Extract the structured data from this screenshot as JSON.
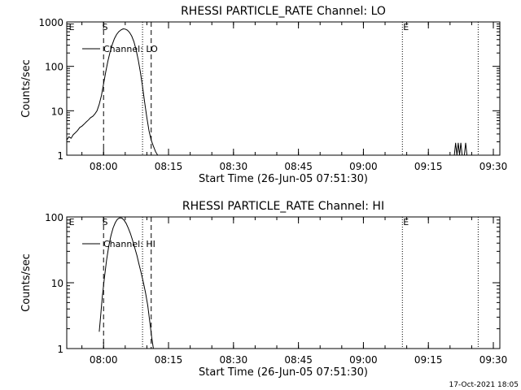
{
  "chart_data": [
    {
      "type": "line",
      "title": "RHESSI PARTICLE_RATE Channel: LO",
      "xlabel": "Start Time (26-Jun-05 07:51:30)",
      "ylabel": "Counts/sec",
      "yscale": "log",
      "ylim": [
        1,
        1000
      ],
      "xlim_minutes_after_start": [
        0,
        100
      ],
      "x_ticks": [
        {
          "minute": 8.5,
          "label": "08:00"
        },
        {
          "minute": 23.5,
          "label": "08:15"
        },
        {
          "minute": 38.5,
          "label": "08:30"
        },
        {
          "minute": 53.5,
          "label": "08:45"
        },
        {
          "minute": 68.5,
          "label": "09:00"
        },
        {
          "minute": 83.5,
          "label": "09:15"
        },
        {
          "minute": 98.5,
          "label": "09:30"
        }
      ],
      "y_ticks": [
        {
          "value": 1,
          "label": "1"
        },
        {
          "value": 10,
          "label": "10"
        },
        {
          "value": 100,
          "label": "100"
        },
        {
          "value": 1000,
          "label": "1000"
        }
      ],
      "legend": "Channel: LO",
      "annotations": [
        {
          "minute": 0.3,
          "text": "E"
        },
        {
          "minute": 8.0,
          "text": "S"
        },
        {
          "minute": 77.5,
          "text": "E"
        }
      ],
      "vlines": [
        {
          "minute": 8.5,
          "style": "dashed"
        },
        {
          "minute": 17.5,
          "style": "dotted"
        },
        {
          "minute": 19.5,
          "style": "dashed"
        },
        {
          "minute": 77.5,
          "style": "dotted"
        },
        {
          "minute": 95.0,
          "style": "dotted"
        }
      ],
      "series": [
        {
          "name": "Channel: LO",
          "points": [
            [
              0.0,
              2.2
            ],
            [
              0.5,
              2.6
            ],
            [
              1.0,
              2.4
            ],
            [
              1.5,
              2.9
            ],
            [
              2.0,
              3.2
            ],
            [
              2.5,
              3.6
            ],
            [
              3.0,
              4.2
            ],
            [
              3.5,
              4.5
            ],
            [
              4.0,
              5.0
            ],
            [
              4.5,
              5.6
            ],
            [
              5.0,
              6.2
            ],
            [
              5.5,
              7.0
            ],
            [
              6.0,
              7.5
            ],
            [
              6.5,
              8.5
            ],
            [
              7.0,
              10.0
            ],
            [
              7.5,
              14.0
            ],
            [
              8.0,
              22.0
            ],
            [
              8.5,
              40.0
            ],
            [
              9.0,
              75.0
            ],
            [
              9.5,
              130.0
            ],
            [
              10.0,
              210.0
            ],
            [
              10.5,
              310.0
            ],
            [
              11.0,
              420.0
            ],
            [
              11.5,
              520.0
            ],
            [
              12.0,
              600.0
            ],
            [
              12.5,
              660.0
            ],
            [
              13.0,
              700.0
            ],
            [
              13.5,
              690.0
            ],
            [
              14.0,
              650.0
            ],
            [
              14.5,
              580.0
            ],
            [
              15.0,
              480.0
            ],
            [
              15.5,
              360.0
            ],
            [
              16.0,
              240.0
            ],
            [
              16.5,
              140.0
            ],
            [
              17.0,
              75.0
            ],
            [
              17.5,
              35.0
            ],
            [
              18.0,
              15.0
            ],
            [
              18.5,
              7.0
            ],
            [
              19.0,
              3.5
            ],
            [
              19.5,
              2.2
            ],
            [
              20.0,
              1.6
            ],
            [
              20.5,
              1.2
            ],
            [
              21.0,
              1.0
            ],
            [
              89.5,
              1.0
            ],
            [
              89.8,
              1.9
            ],
            [
              90.1,
              1.0
            ],
            [
              90.4,
              1.9
            ],
            [
              90.7,
              1.0
            ],
            [
              91.0,
              1.9
            ],
            [
              91.3,
              1.0
            ],
            [
              91.8,
              1.0
            ],
            [
              92.1,
              1.9
            ],
            [
              92.4,
              1.0
            ]
          ]
        }
      ]
    },
    {
      "type": "line",
      "title": "RHESSI PARTICLE_RATE Channel: HI",
      "xlabel": "Start Time (26-Jun-05 07:51:30)",
      "ylabel": "Counts/sec",
      "yscale": "log",
      "ylim": [
        1,
        100
      ],
      "xlim_minutes_after_start": [
        0,
        100
      ],
      "x_ticks": [
        {
          "minute": 8.5,
          "label": "08:00"
        },
        {
          "minute": 23.5,
          "label": "08:15"
        },
        {
          "minute": 38.5,
          "label": "08:30"
        },
        {
          "minute": 53.5,
          "label": "08:45"
        },
        {
          "minute": 68.5,
          "label": "09:00"
        },
        {
          "minute": 83.5,
          "label": "09:15"
        },
        {
          "minute": 98.5,
          "label": "09:30"
        }
      ],
      "y_ticks": [
        {
          "value": 1,
          "label": "1"
        },
        {
          "value": 10,
          "label": "10"
        },
        {
          "value": 100,
          "label": "100"
        }
      ],
      "legend": "Channel: HI",
      "annotations": [
        {
          "minute": 0.3,
          "text": "E"
        },
        {
          "minute": 8.0,
          "text": "S"
        },
        {
          "minute": 77.5,
          "text": "E"
        }
      ],
      "vlines": [
        {
          "minute": 8.5,
          "style": "dashed"
        },
        {
          "minute": 17.5,
          "style": "dotted"
        },
        {
          "minute": 19.5,
          "style": "dashed"
        },
        {
          "minute": 77.5,
          "style": "dotted"
        },
        {
          "minute": 95.0,
          "style": "dotted"
        }
      ],
      "series": [
        {
          "name": "Channel: HI",
          "points": [
            [
              7.5,
              1.8
            ],
            [
              7.8,
              3.0
            ],
            [
              8.2,
              6.0
            ],
            [
              8.7,
              12.0
            ],
            [
              9.2,
              22.0
            ],
            [
              9.7,
              36.0
            ],
            [
              10.2,
              52.0
            ],
            [
              10.7,
              68.0
            ],
            [
              11.2,
              82.0
            ],
            [
              11.7,
              92.0
            ],
            [
              12.2,
              97.0
            ],
            [
              12.7,
              96.0
            ],
            [
              13.2,
              90.0
            ],
            [
              13.7,
              80.0
            ],
            [
              14.2,
              68.0
            ],
            [
              14.7,
              56.0
            ],
            [
              15.2,
              44.0
            ],
            [
              15.7,
              34.0
            ],
            [
              16.2,
              26.0
            ],
            [
              16.7,
              19.0
            ],
            [
              17.2,
              14.0
            ],
            [
              17.7,
              10.0
            ],
            [
              18.2,
              7.0
            ],
            [
              18.7,
              4.5
            ],
            [
              19.2,
              2.5
            ],
            [
              19.6,
              1.5
            ],
            [
              20.0,
              1.0
            ]
          ]
        }
      ]
    }
  ],
  "timestamp": "17-Oct-2021 18:05"
}
